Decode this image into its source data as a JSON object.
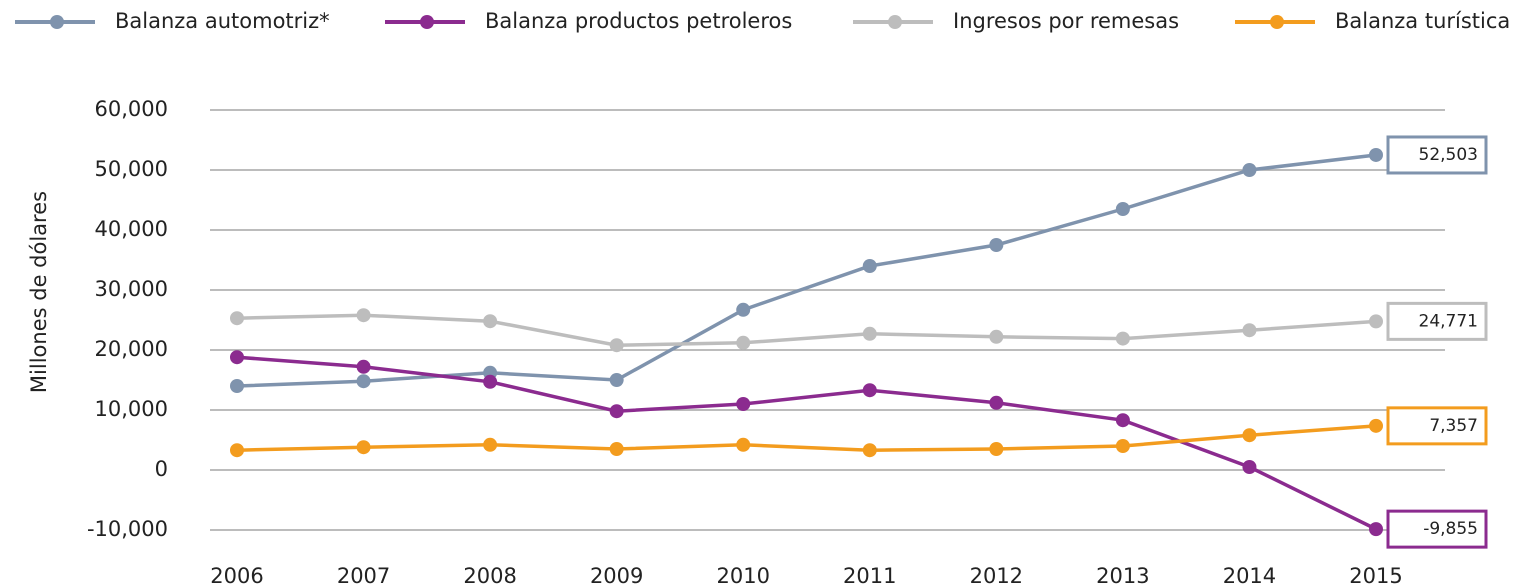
{
  "chart_data": {
    "type": "line",
    "y_label": "Millones de dólares",
    "categories": [
      "2006",
      "2007",
      "2008",
      "2009",
      "2010",
      "2011",
      "2012",
      "2013",
      "2014",
      "2015"
    ],
    "series": [
      {
        "name": "Balanza automotriz*",
        "color": "#7f93ad",
        "values": [
          14000,
          14800,
          16200,
          15000,
          26700,
          34000,
          37500,
          43500,
          50000,
          52503
        ],
        "value_labels": [
          null,
          null,
          null,
          null,
          null,
          null,
          null,
          null,
          null,
          "52,503"
        ]
      },
      {
        "name": "Balanza productos petroleros",
        "color": "#8b2b8f",
        "values": [
          18800,
          17200,
          14700,
          9800,
          11000,
          13300,
          11200,
          8300,
          500,
          -9855
        ],
        "value_labels": [
          null,
          null,
          null,
          null,
          null,
          null,
          null,
          null,
          null,
          "-9,855"
        ]
      },
      {
        "name": "Ingresos por remesas",
        "color": "#bdbdbd",
        "values": [
          25300,
          25800,
          24800,
          20800,
          21200,
          22700,
          22200,
          21900,
          23300,
          24771
        ],
        "value_labels": [
          null,
          null,
          null,
          null,
          null,
          null,
          null,
          null,
          null,
          "24,771"
        ]
      },
      {
        "name": "Balanza turística",
        "color": "#f39c1e",
        "values": [
          3300,
          3800,
          4200,
          3500,
          4200,
          3300,
          3500,
          4000,
          5800,
          7357
        ],
        "value_labels": [
          null,
          null,
          null,
          null,
          null,
          null,
          null,
          null,
          null,
          "7,357"
        ]
      }
    ],
    "ylim": [
      -10000,
      60000
    ],
    "yticks": [
      {
        "value": -10000,
        "label": "-10,000"
      },
      0,
      {
        "value": 10000,
        "label": "10,000"
      },
      {
        "value": 20000,
        "label": "20,000"
      },
      {
        "value": 30000,
        "label": "30,000"
      },
      {
        "value": 40000,
        "label": "40,000"
      },
      {
        "value": 50000,
        "label": "50,000"
      },
      {
        "value": 60000,
        "label": "60,000"
      }
    ],
    "grid": true,
    "legend": "top"
  }
}
